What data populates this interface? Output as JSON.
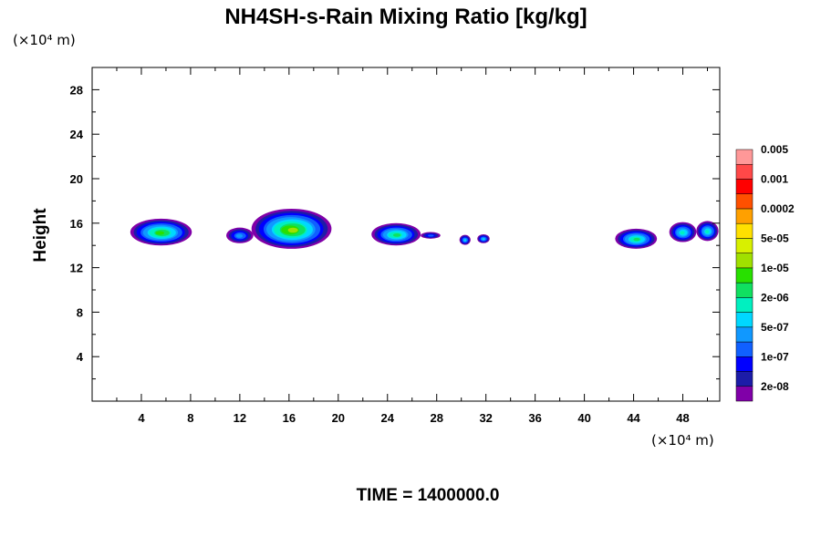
{
  "chart_data": {
    "type": "heatmap",
    "title": "NH4SH-s-Rain Mixing Ratio [kg/kg]",
    "ylabel": "Height",
    "x_unit": "(×10⁴ m)",
    "y_unit": "(×10⁴ m)",
    "xlim": [
      0,
      51
    ],
    "ylim": [
      0,
      30
    ],
    "x_ticks": [
      4,
      8,
      12,
      16,
      20,
      24,
      28,
      32,
      36,
      40,
      44,
      48
    ],
    "y_ticks": [
      4,
      8,
      12,
      16,
      20,
      24,
      28
    ],
    "colorbar": {
      "colors": [
        "#8000a8",
        "#1c1ca8",
        "#0000ff",
        "#1060ff",
        "#1098ff",
        "#00d8ff",
        "#00f0c0",
        "#10e060",
        "#28e000",
        "#a0e000",
        "#d8f000",
        "#ffe000",
        "#ffa000",
        "#ff5000",
        "#ff0000",
        "#ff4848",
        "#ff9898"
      ],
      "labels": [
        "2e-08",
        "1e-07",
        "5e-07",
        "2e-06",
        "1e-05",
        "5e-05",
        "0.0002",
        "0.001",
        "0.005"
      ]
    },
    "clouds": [
      {
        "x": 5.6,
        "y": 15.2,
        "w": 5.0,
        "h": 2.4,
        "peak": 8
      },
      {
        "x": 12.0,
        "y": 14.9,
        "w": 2.2,
        "h": 1.4,
        "peak": 4
      },
      {
        "x": 16.2,
        "y": 15.5,
        "w": 6.5,
        "h": 3.6,
        "peak": 9
      },
      {
        "x": 24.7,
        "y": 15.0,
        "w": 4.0,
        "h": 2.0,
        "peak": 7
      },
      {
        "x": 27.5,
        "y": 14.9,
        "w": 1.6,
        "h": 0.6,
        "peak": 3
      },
      {
        "x": 30.3,
        "y": 14.5,
        "w": 0.9,
        "h": 0.9,
        "peak": 5
      },
      {
        "x": 31.8,
        "y": 14.6,
        "w": 1.0,
        "h": 0.8,
        "peak": 5
      },
      {
        "x": 44.2,
        "y": 14.6,
        "w": 3.4,
        "h": 1.8,
        "peak": 7
      },
      {
        "x": 48.0,
        "y": 15.2,
        "w": 2.2,
        "h": 1.8,
        "peak": 6
      },
      {
        "x": 50.0,
        "y": 15.3,
        "w": 1.8,
        "h": 1.8,
        "peak": 6
      }
    ]
  },
  "footer": {
    "time_label": "TIME = 1400000.0"
  }
}
